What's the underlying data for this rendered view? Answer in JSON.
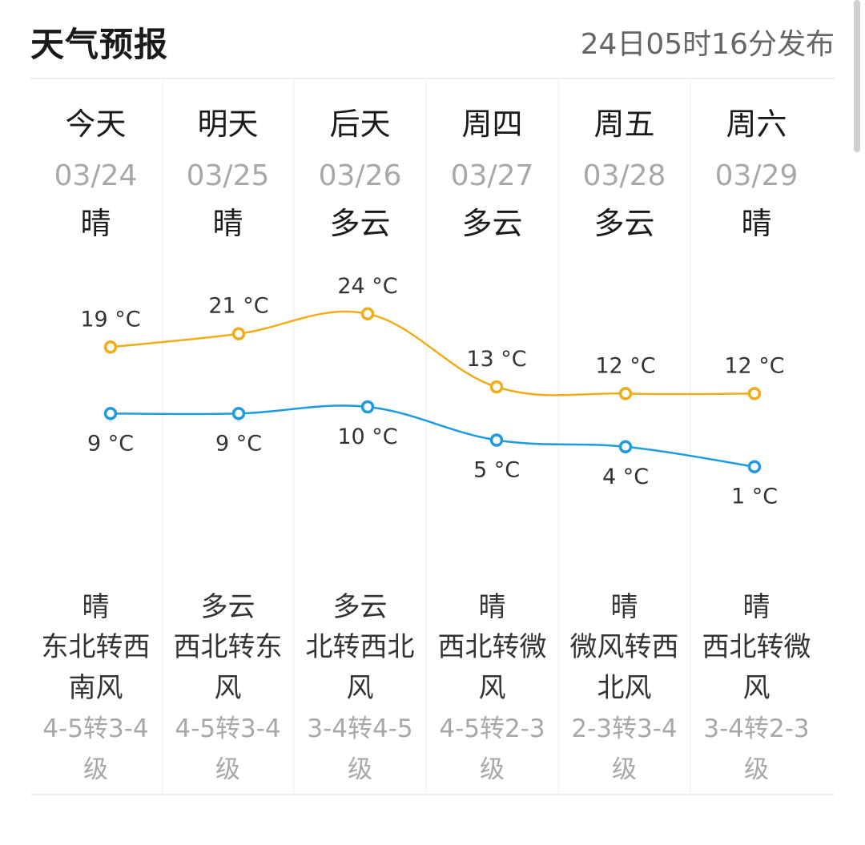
{
  "header": {
    "title": "天气预报",
    "published": "24日05时16分发布"
  },
  "days": [
    {
      "name": "今天",
      "date": "03/24",
      "weather": "晴",
      "detail_weather": "晴",
      "wind_line1": "东北转西",
      "wind_line2": "南风",
      "level_line1": "4-5转3-4",
      "level_line2": "级"
    },
    {
      "name": "明天",
      "date": "03/25",
      "weather": "晴",
      "detail_weather": "多云",
      "wind_line1": "西北转东",
      "wind_line2": "风",
      "level_line1": "4-5转3-4",
      "level_line2": "级"
    },
    {
      "name": "后天",
      "date": "03/26",
      "weather": "多云",
      "detail_weather": "多云",
      "wind_line1": "北转西北",
      "wind_line2": "风",
      "level_line1": "3-4转4-5",
      "level_line2": "级"
    },
    {
      "name": "周四",
      "date": "03/27",
      "weather": "多云",
      "detail_weather": "晴",
      "wind_line1": "西北转微",
      "wind_line2": "风",
      "level_line1": "4-5转2-3",
      "level_line2": "级"
    },
    {
      "name": "周五",
      "date": "03/28",
      "weather": "多云",
      "detail_weather": "晴",
      "wind_line1": "微风转西",
      "wind_line2": "北风",
      "level_line1": "2-3转3-4",
      "level_line2": "级"
    },
    {
      "name": "周六",
      "date": "03/29",
      "weather": "晴",
      "detail_weather": "晴",
      "wind_line1": "西北转微",
      "wind_line2": "风",
      "level_line1": "3-4转2-3",
      "level_line2": "级"
    }
  ],
  "colors": {
    "high": "#f0ac19",
    "low": "#1e9be0"
  },
  "chart_data": {
    "type": "line",
    "categories": [
      "03/24",
      "03/25",
      "03/26",
      "03/27",
      "03/28",
      "03/29"
    ],
    "unit": "°C",
    "series": [
      {
        "values": [
          19,
          21,
          24,
          13,
          12,
          12
        ],
        "labels": [
          "19 °C",
          "21 °C",
          "24 °C",
          "13 °C",
          "12 °C",
          "12 °C"
        ]
      },
      {
        "values": [
          9,
          9,
          10,
          5,
          4,
          1
        ],
        "labels": [
          "9 °C",
          "9 °C",
          "10 °C",
          "5 °C",
          "4 °C",
          "1 °C"
        ]
      }
    ],
    "grid": false
  }
}
